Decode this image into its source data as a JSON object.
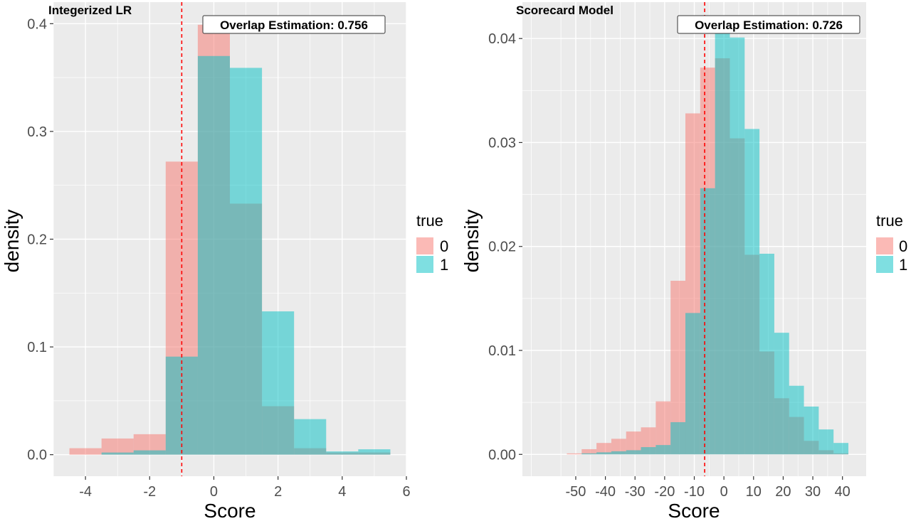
{
  "chart_data": [
    {
      "type": "histogram",
      "title": "Integerized LR",
      "annotation": "Overlap Estimation: 0.756",
      "xlabel": "Score",
      "ylabel": "density",
      "xlim": [
        -5,
        6
      ],
      "ylim": [
        -0.02,
        0.42
      ],
      "xticks": [
        -4,
        -2,
        0,
        2,
        4,
        6
      ],
      "xtick_labels": [
        "-4",
        "-2",
        "0",
        "2",
        "4",
        "6"
      ],
      "yticks": [
        0.0,
        0.1,
        0.2,
        0.3,
        0.4
      ],
      "ytick_labels": [
        "0.0",
        "0.1",
        "0.2",
        "0.3",
        "0.4"
      ],
      "vline": -1.0,
      "bins": [
        -4.5,
        -3.5,
        -2.5,
        -1.5,
        -0.5,
        0.5,
        1.5,
        2.5,
        3.5,
        4.5,
        5.5
      ],
      "series": [
        {
          "name": "0",
          "values": [
            0.006,
            0.015,
            0.019,
            0.272,
            0.399,
            0.233,
            0.045,
            0.006,
            0.002,
            0.002
          ]
        },
        {
          "name": "1",
          "values": [
            0.0,
            0.002,
            0.004,
            0.091,
            0.37,
            0.359,
            0.133,
            0.033,
            0.003,
            0.005
          ]
        }
      ],
      "grid": true
    },
    {
      "type": "histogram",
      "title": "Scorecard Model",
      "annotation": "Overlap Estimation: 0.726",
      "xlabel": "Score",
      "ylabel": "density",
      "xlim": [
        -68,
        48
      ],
      "ylim": [
        -0.0021,
        0.0435
      ],
      "xticks": [
        -50,
        -40,
        -30,
        -20,
        -10,
        0,
        10,
        20,
        30,
        40
      ],
      "xtick_labels": [
        "-50",
        "-40",
        "-30",
        "-20",
        "-10",
        "0",
        "10",
        "20",
        "30",
        "40"
      ],
      "yticks": [
        0.0,
        0.01,
        0.02,
        0.03,
        0.04
      ],
      "ytick_labels": [
        "0.00",
        "0.01",
        "0.02",
        "0.03",
        "0.04"
      ],
      "vline": -6.5,
      "bins": [
        -53,
        -48,
        -43,
        -38,
        -33,
        -28,
        -23,
        -18,
        -13,
        -8,
        -3,
        2,
        7,
        12,
        17,
        22,
        27,
        32,
        37,
        42
      ],
      "series": [
        {
          "name": "0",
          "values": [
            0.0001,
            0.0005,
            0.0011,
            0.0015,
            0.0022,
            0.0026,
            0.0051,
            0.0167,
            0.0328,
            0.0372,
            0.0381,
            0.0304,
            0.0192,
            0.0099,
            0.0054,
            0.0036,
            0.0013,
            0.0004,
            0.0001
          ]
        },
        {
          "name": "1",
          "values": [
            0.0,
            0.0001,
            0.0002,
            0.0003,
            0.0004,
            0.0007,
            0.0009,
            0.0031,
            0.0136,
            0.0256,
            0.0412,
            0.0401,
            0.0313,
            0.0193,
            0.0117,
            0.0066,
            0.0046,
            0.0024,
            0.0011
          ]
        }
      ],
      "grid": true
    }
  ],
  "legend": {
    "title": "true",
    "placement": "right"
  },
  "colors": {
    "series0": "#F8766D",
    "series1": "#00BFC4",
    "panel_bg": "#EBEBEB",
    "grid": "#FFFFFF",
    "vline": "#FF0000"
  }
}
